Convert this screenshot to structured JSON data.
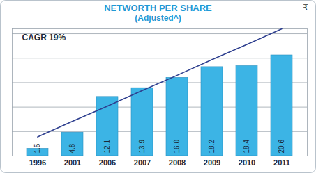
{
  "chart_data": {
    "type": "bar",
    "title": "NETWORTH PER SHARE",
    "subtitle": "(Adjusted^)",
    "annotations": [
      "CAGR 19%",
      "₹"
    ],
    "categories": [
      "1996",
      "2001",
      "2006",
      "2007",
      "2008",
      "2009",
      "2010",
      "2011"
    ],
    "series": [
      {
        "type": "bar",
        "color": "#3cb4e5",
        "values": [
          1.5,
          4.8,
          12.1,
          13.9,
          16.0,
          18.2,
          18.4,
          20.6
        ],
        "value_labels": [
          "1.5",
          "4.8",
          "12.1",
          "13.9",
          "16.0",
          "18.2",
          "18.4",
          "20.6"
        ]
      },
      {
        "type": "line",
        "color": "#2e3f8f",
        "values": [
          3.9,
          7.1,
          10.2,
          13.4,
          16.5,
          19.7,
          22.8,
          26.0
        ]
      }
    ],
    "data_labels": true,
    "ylim": [
      0,
      26
    ],
    "yticks": [
      0,
      5,
      10,
      15,
      20,
      25
    ],
    "grid": true,
    "tick_labels": "x"
  }
}
